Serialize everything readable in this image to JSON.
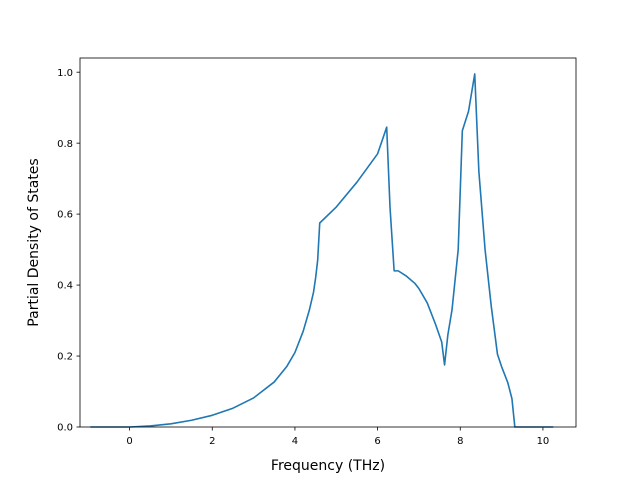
{
  "chart_data": {
    "type": "line",
    "title": "",
    "xlabel": "Frequency (THz)",
    "ylabel": "Partial Density of States",
    "xlim": [
      -1.2,
      10.8
    ],
    "ylim": [
      0.0,
      1.04
    ],
    "x_ticks": [
      0,
      2,
      4,
      6,
      8,
      10
    ],
    "x_tick_labels": [
      "0",
      "2",
      "4",
      "6",
      "8",
      "10"
    ],
    "y_ticks": [
      0.0,
      0.2,
      0.4,
      0.6,
      0.8,
      1.0
    ],
    "y_tick_labels": [
      "0.0",
      "0.2",
      "0.4",
      "0.6",
      "0.8",
      "1.0"
    ],
    "grid": false,
    "line_color": "#1f77b4",
    "series": [
      {
        "x": [
          -0.95,
          0.0,
          0.5,
          1.0,
          1.5,
          2.0,
          2.5,
          3.0,
          3.5,
          3.8,
          4.0,
          4.2,
          4.35,
          4.45,
          4.5,
          4.55,
          4.6,
          5.0,
          5.5,
          6.0,
          6.22,
          6.3,
          6.4,
          6.5,
          6.7,
          6.9,
          7.0,
          7.2,
          7.4,
          7.55,
          7.62,
          7.7,
          7.8,
          7.95,
          8.05,
          8.2,
          8.35,
          8.45,
          8.6,
          8.75,
          8.9,
          9.0,
          9.15,
          9.25,
          9.32,
          9.5,
          10.0,
          10.25
        ],
        "y": [
          0.0,
          0.0,
          0.003,
          0.009,
          0.019,
          0.033,
          0.053,
          0.082,
          0.127,
          0.17,
          0.21,
          0.27,
          0.33,
          0.38,
          0.42,
          0.47,
          0.575,
          0.62,
          0.69,
          0.77,
          0.845,
          0.62,
          0.44,
          0.44,
          0.425,
          0.405,
          0.39,
          0.35,
          0.29,
          0.24,
          0.175,
          0.26,
          0.33,
          0.5,
          0.835,
          0.89,
          0.995,
          0.72,
          0.5,
          0.34,
          0.205,
          0.17,
          0.125,
          0.08,
          0.0,
          0.0,
          0.0,
          0.0
        ]
      }
    ]
  }
}
